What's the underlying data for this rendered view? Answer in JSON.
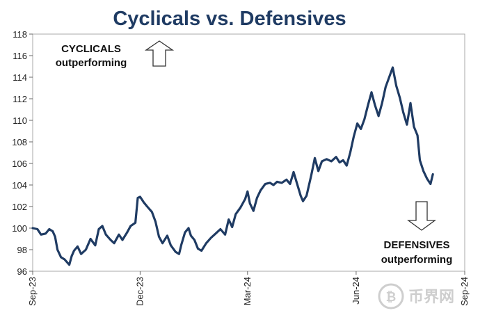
{
  "chart_data": {
    "type": "line",
    "title": "Cyclicals vs. Defensives",
    "xlabel": "",
    "ylabel": "",
    "ylim": [
      96,
      118
    ],
    "yticks": [
      96,
      98,
      100,
      102,
      104,
      106,
      108,
      110,
      112,
      114,
      116,
      118
    ],
    "xlim": [
      "2023-09-01",
      "2024-09-01"
    ],
    "xticks": [
      {
        "date": "2023-09-01",
        "label": "Sep-23"
      },
      {
        "date": "2023-12-01",
        "label": "Dec-23"
      },
      {
        "date": "2024-03-01",
        "label": "Mar-24"
      },
      {
        "date": "2024-06-01",
        "label": "Jun-24"
      },
      {
        "date": "2024-09-01",
        "label": "Sep-24"
      }
    ],
    "grid": false,
    "legend": "none",
    "line_color": "#1f3b63",
    "series": [
      {
        "name": "",
        "points": [
          [
            "2023-09-01",
            100.0
          ],
          [
            "2023-09-05",
            99.9
          ],
          [
            "2023-09-08",
            99.4
          ],
          [
            "2023-09-12",
            99.5
          ],
          [
            "2023-09-15",
            99.9
          ],
          [
            "2023-09-18",
            99.7
          ],
          [
            "2023-09-20",
            99.2
          ],
          [
            "2023-09-22",
            98.0
          ],
          [
            "2023-09-25",
            97.3
          ],
          [
            "2023-09-28",
            97.1
          ],
          [
            "2023-10-02",
            96.6
          ],
          [
            "2023-10-04",
            97.4
          ],
          [
            "2023-10-06",
            97.9
          ],
          [
            "2023-10-09",
            98.3
          ],
          [
            "2023-10-12",
            97.6
          ],
          [
            "2023-10-16",
            98.0
          ],
          [
            "2023-10-20",
            99.0
          ],
          [
            "2023-10-24",
            98.4
          ],
          [
            "2023-10-27",
            99.9
          ],
          [
            "2023-10-30",
            100.2
          ],
          [
            "2023-11-02",
            99.4
          ],
          [
            "2023-11-06",
            98.9
          ],
          [
            "2023-11-09",
            98.6
          ],
          [
            "2023-11-13",
            99.4
          ],
          [
            "2023-11-16",
            98.9
          ],
          [
            "2023-11-20",
            99.6
          ],
          [
            "2023-11-23",
            100.2
          ],
          [
            "2023-11-27",
            100.5
          ],
          [
            "2023-11-29",
            102.8
          ],
          [
            "2023-12-01",
            102.9
          ],
          [
            "2023-12-04",
            102.4
          ],
          [
            "2023-12-07",
            102.0
          ],
          [
            "2023-12-11",
            101.5
          ],
          [
            "2023-12-14",
            100.6
          ],
          [
            "2023-12-17",
            99.2
          ],
          [
            "2023-12-20",
            98.6
          ],
          [
            "2023-12-24",
            99.3
          ],
          [
            "2023-12-27",
            98.4
          ],
          [
            "2023-12-31",
            97.8
          ],
          [
            "2024-01-03",
            97.6
          ],
          [
            "2024-01-05",
            98.5
          ],
          [
            "2024-01-08",
            99.6
          ],
          [
            "2024-01-11",
            100.0
          ],
          [
            "2024-01-13",
            99.3
          ],
          [
            "2024-01-16",
            98.9
          ],
          [
            "2024-01-19",
            98.1
          ],
          [
            "2024-01-22",
            97.9
          ],
          [
            "2024-01-26",
            98.6
          ],
          [
            "2024-01-30",
            99.1
          ],
          [
            "2024-02-03",
            99.5
          ],
          [
            "2024-02-07",
            99.9
          ],
          [
            "2024-02-11",
            99.4
          ],
          [
            "2024-02-14",
            100.8
          ],
          [
            "2024-02-17",
            100.1
          ],
          [
            "2024-02-20",
            101.3
          ],
          [
            "2024-02-24",
            101.9
          ],
          [
            "2024-02-28",
            102.7
          ],
          [
            "2024-03-01",
            103.4
          ],
          [
            "2024-03-03",
            102.3
          ],
          [
            "2024-03-06",
            101.6
          ],
          [
            "2024-03-09",
            102.8
          ],
          [
            "2024-03-12",
            103.5
          ],
          [
            "2024-03-16",
            104.1
          ],
          [
            "2024-03-20",
            104.2
          ],
          [
            "2024-03-23",
            104.0
          ],
          [
            "2024-03-26",
            104.3
          ],
          [
            "2024-03-30",
            104.2
          ],
          [
            "2024-04-03",
            104.5
          ],
          [
            "2024-04-06",
            104.1
          ],
          [
            "2024-04-09",
            105.2
          ],
          [
            "2024-04-12",
            104.1
          ],
          [
            "2024-04-15",
            103.0
          ],
          [
            "2024-04-17",
            102.5
          ],
          [
            "2024-04-20",
            103.0
          ],
          [
            "2024-04-24",
            104.9
          ],
          [
            "2024-04-27",
            106.5
          ],
          [
            "2024-04-30",
            105.3
          ],
          [
            "2024-05-03",
            106.2
          ],
          [
            "2024-05-07",
            106.4
          ],
          [
            "2024-05-11",
            106.2
          ],
          [
            "2024-05-15",
            106.6
          ],
          [
            "2024-05-18",
            106.1
          ],
          [
            "2024-05-21",
            106.3
          ],
          [
            "2024-05-24",
            105.8
          ],
          [
            "2024-05-27",
            107.0
          ],
          [
            "2024-05-30",
            108.5
          ],
          [
            "2024-06-02",
            109.7
          ],
          [
            "2024-06-05",
            109.2
          ],
          [
            "2024-06-08",
            110.1
          ],
          [
            "2024-06-11",
            111.4
          ],
          [
            "2024-06-14",
            112.6
          ],
          [
            "2024-06-17",
            111.4
          ],
          [
            "2024-06-20",
            110.4
          ],
          [
            "2024-06-23",
            111.6
          ],
          [
            "2024-06-26",
            113.1
          ],
          [
            "2024-06-29",
            114.0
          ],
          [
            "2024-07-02",
            114.9
          ],
          [
            "2024-07-05",
            113.2
          ],
          [
            "2024-07-08",
            112.1
          ],
          [
            "2024-07-11",
            110.7
          ],
          [
            "2024-07-14",
            109.6
          ],
          [
            "2024-07-17",
            111.6
          ],
          [
            "2024-07-20",
            109.4
          ],
          [
            "2024-07-23",
            108.6
          ],
          [
            "2024-07-25",
            106.3
          ],
          [
            "2024-07-28",
            105.3
          ],
          [
            "2024-07-31",
            104.6
          ],
          [
            "2024-08-03",
            104.1
          ],
          [
            "2024-08-05",
            105.0
          ]
        ]
      }
    ],
    "annotations": [
      {
        "lines": [
          "CYCLICALS",
          "outperforming"
        ],
        "arrow": "up",
        "placement": "top-left"
      },
      {
        "lines": [
          "DEFENSIVES",
          "outperforming"
        ],
        "arrow": "down",
        "placement": "bottom-right"
      }
    ]
  },
  "watermark": {
    "text": "币界网"
  }
}
